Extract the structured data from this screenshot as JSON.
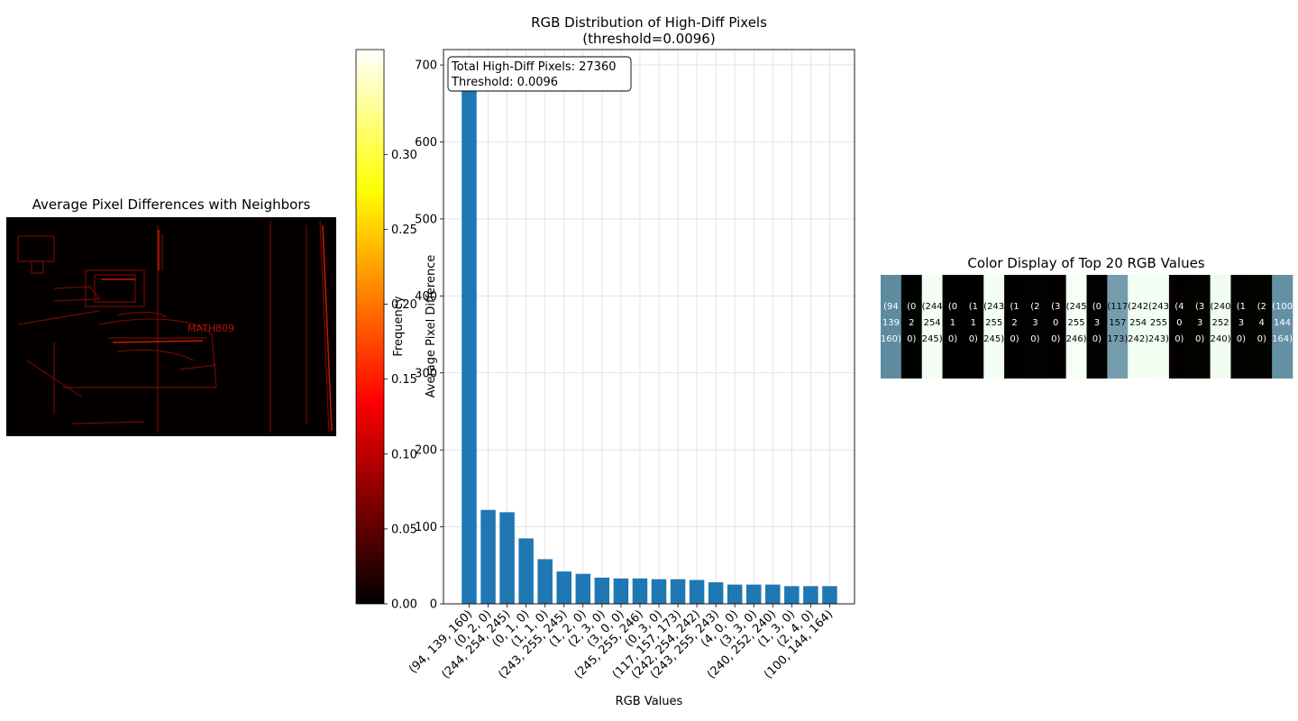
{
  "chart_data": [
    {
      "type": "heatmap",
      "title": "Average Pixel Differences with Neighbors",
      "annotations": [
        "MATH809"
      ],
      "colormap": "hot",
      "colorbar": {
        "label": "Average Pixel Difference",
        "range": [
          0,
          0.37
        ],
        "ticks": [
          "0.00",
          "0.05",
          "0.10",
          "0.15",
          "0.20",
          "0.25",
          "0.30"
        ],
        "tick_values": [
          0,
          0.05,
          0.1,
          0.15,
          0.2,
          0.25,
          0.3
        ]
      }
    },
    {
      "type": "bar",
      "title": "RGB Distribution of High-Diff Pixels",
      "subtitle": "(threshold=0.0096)",
      "xlabel": "RGB Values",
      "ylabel": "Frequency",
      "ylim": [
        0,
        720
      ],
      "yticks": [
        0,
        100,
        200,
        300,
        400,
        500,
        600,
        700
      ],
      "grid": true,
      "color": "#1f77b4",
      "annotation_lines": [
        "Total High-Diff Pixels: 27360",
        "Threshold: 0.0096"
      ],
      "categories": [
        "(94, 139, 160)",
        "(0, 2, 0)",
        "(244, 254, 245)",
        "(0, 1, 0)",
        "(1, 1, 0)",
        "(243, 255, 245)",
        "(1, 2, 0)",
        "(2, 3, 0)",
        "(3, 0, 0)",
        "(245, 255, 246)",
        "(0, 3, 0)",
        "(117, 157, 173)",
        "(242, 254, 242)",
        "(243, 255, 243)",
        "(4, 0, 0)",
        "(3, 3, 0)",
        "(240, 252, 240)",
        "(1, 3, 0)",
        "(2, 4, 0)",
        "(100, 144, 164)"
      ],
      "values": [
        683,
        122,
        119,
        85,
        58,
        42,
        39,
        34,
        33,
        33,
        32,
        32,
        31,
        28,
        25,
        25,
        25,
        23,
        23,
        23
      ]
    },
    {
      "type": "table",
      "title": "Color Display of Top 20 RGB Values",
      "swatches": [
        {
          "color": "#5e8ba0",
          "lines": [
            "(94",
            "139",
            "160)"
          ]
        },
        {
          "color": "#000200",
          "lines": [
            "(0",
            "2",
            "0)"
          ]
        },
        {
          "color": "#f4fef5",
          "lines": [
            "(244",
            "254",
            "245)"
          ]
        },
        {
          "color": "#000100",
          "lines": [
            "(0",
            "1",
            "0)"
          ]
        },
        {
          "color": "#010100",
          "lines": [
            "(1",
            "1",
            "0)"
          ]
        },
        {
          "color": "#f3fff5",
          "lines": [
            "(243",
            "255",
            "245)"
          ]
        },
        {
          "color": "#010200",
          "lines": [
            "(1",
            "2",
            "0)"
          ]
        },
        {
          "color": "#020300",
          "lines": [
            "(2",
            "3",
            "0)"
          ]
        },
        {
          "color": "#030000",
          "lines": [
            "(3",
            "0",
            "0)"
          ]
        },
        {
          "color": "#f5fff6",
          "lines": [
            "(245",
            "255",
            "246)"
          ]
        },
        {
          "color": "#000300",
          "lines": [
            "(0",
            "3",
            "0)"
          ]
        },
        {
          "color": "#759dad",
          "lines": [
            "(117",
            "157",
            "173)"
          ]
        },
        {
          "color": "#f2fef2",
          "lines": [
            "(242",
            "254",
            "242)"
          ]
        },
        {
          "color": "#f3fff3",
          "lines": [
            "(243",
            "255",
            "243)"
          ]
        },
        {
          "color": "#040000",
          "lines": [
            "(4",
            "0",
            "0)"
          ]
        },
        {
          "color": "#030300",
          "lines": [
            "(3",
            "3",
            "0)"
          ]
        },
        {
          "color": "#f0fcf0",
          "lines": [
            "(240",
            "252",
            "240)"
          ]
        },
        {
          "color": "#010300",
          "lines": [
            "(1",
            "3",
            "0)"
          ]
        },
        {
          "color": "#020400",
          "lines": [
            "(2",
            "4",
            "0)"
          ]
        },
        {
          "color": "#6490a4",
          "lines": [
            "(100",
            "144",
            "164)"
          ]
        }
      ]
    }
  ]
}
